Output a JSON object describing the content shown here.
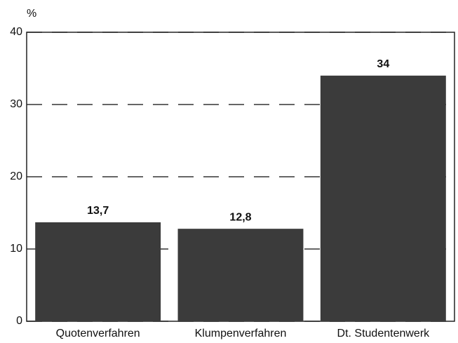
{
  "chart_data": {
    "type": "bar",
    "y_label": "%",
    "categories": [
      "Quotenverfahren",
      "Klumpenverfahren",
      "Dt. Studentenwerk"
    ],
    "values": [
      13.7,
      12.8,
      34
    ],
    "value_labels": [
      "13,7",
      "12,8",
      "34"
    ],
    "color": "#3b3b3b",
    "ylim": [
      0,
      40
    ],
    "yticks": [
      0,
      10,
      20,
      30,
      40
    ],
    "grid": true
  }
}
